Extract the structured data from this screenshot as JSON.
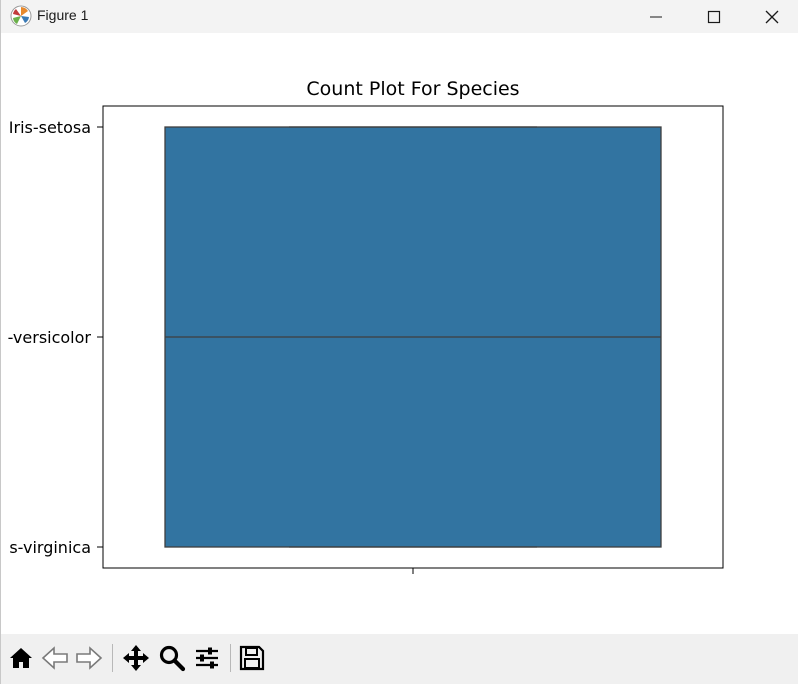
{
  "window": {
    "title": "Figure 1",
    "icons": {
      "app": "matplotlib-logo-icon",
      "minimize": "minimize-icon",
      "maximize": "maximize-icon",
      "close": "close-icon"
    }
  },
  "toolbar": {
    "items": [
      {
        "name": "home-icon"
      },
      {
        "name": "back-arrow-icon"
      },
      {
        "name": "forward-arrow-icon"
      },
      {
        "name": "pan-icon"
      },
      {
        "name": "zoom-icon"
      },
      {
        "name": "configure-subplots-icon"
      },
      {
        "name": "save-icon"
      }
    ]
  },
  "chart_data": {
    "type": "box",
    "title": "Count Plot For Species",
    "xlabel": "",
    "ylabel": "",
    "y_categories": [
      "Iris-setosa",
      "Iris-versicolor",
      "Iris-virginica"
    ],
    "y_tick_labels_visible": [
      "Iris-setosa",
      "-versicolor",
      "s-virginica"
    ],
    "box": {
      "whisker_low": "Iris-setosa",
      "q1": "Iris-setosa",
      "median": "Iris-versicolor",
      "q3": "Iris-virginica",
      "whisker_high": "Iris-virginica"
    },
    "x_ticks": [
      ""
    ],
    "grid": false,
    "colors": {
      "box_fill": "#3274a1",
      "box_edge": "#3f3f3f"
    }
  }
}
